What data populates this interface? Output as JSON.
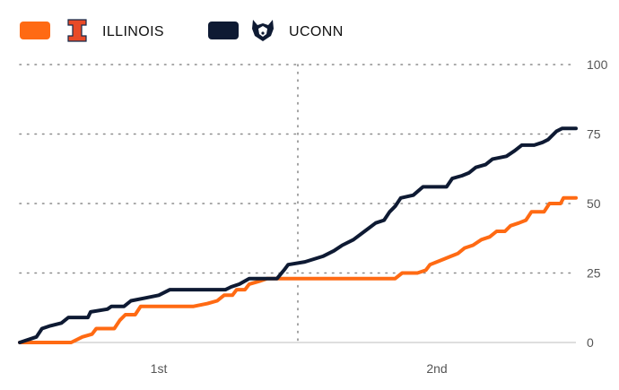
{
  "legend": [
    {
      "team": "ILLINOIS",
      "color": "#FF6A13",
      "logo": "illinois-block-i-logo"
    },
    {
      "team": "UCONN",
      "color": "#0E1A33",
      "logo": "uconn-husky-logo"
    }
  ],
  "chart_data": {
    "type": "line",
    "xlabel": "",
    "ylabel": "",
    "x_unit_note": "game minutes",
    "xlim": [
      0,
      40
    ],
    "ylim": [
      0,
      100
    ],
    "y_ticks": [
      0,
      25,
      50,
      75,
      100
    ],
    "periods": [
      "1st",
      "2nd"
    ],
    "grid": true,
    "legend_position": "top-left",
    "series": [
      {
        "name": "ILLINOIS",
        "color": "#FF6A13",
        "points": [
          [
            0,
            0
          ],
          [
            3.7,
            0
          ],
          [
            4.5,
            2
          ],
          [
            5.2,
            3
          ],
          [
            5.5,
            5
          ],
          [
            6.8,
            5
          ],
          [
            7.2,
            8
          ],
          [
            7.6,
            10
          ],
          [
            8.3,
            10
          ],
          [
            8.7,
            13
          ],
          [
            12.5,
            13
          ],
          [
            13.5,
            14
          ],
          [
            14.2,
            15
          ],
          [
            14.7,
            17
          ],
          [
            15.3,
            17
          ],
          [
            15.6,
            19
          ],
          [
            16.2,
            19
          ],
          [
            16.5,
            21
          ],
          [
            17.2,
            22
          ],
          [
            17.8,
            23
          ],
          [
            27.0,
            23
          ],
          [
            27.5,
            25
          ],
          [
            28.6,
            25
          ],
          [
            29.2,
            26
          ],
          [
            29.5,
            28
          ],
          [
            30.0,
            29
          ],
          [
            30.5,
            30
          ],
          [
            31.0,
            31
          ],
          [
            31.5,
            32
          ],
          [
            32.0,
            34
          ],
          [
            32.6,
            35
          ],
          [
            33.2,
            37
          ],
          [
            33.8,
            38
          ],
          [
            34.3,
            40
          ],
          [
            34.9,
            40
          ],
          [
            35.3,
            42
          ],
          [
            35.9,
            43
          ],
          [
            36.4,
            44
          ],
          [
            36.8,
            47
          ],
          [
            37.7,
            47
          ],
          [
            38.1,
            50
          ],
          [
            38.9,
            50
          ],
          [
            39.1,
            52
          ],
          [
            40.0,
            52
          ]
        ]
      },
      {
        "name": "UCONN",
        "color": "#0E1A33",
        "points": [
          [
            0,
            0
          ],
          [
            1.2,
            2
          ],
          [
            1.6,
            5
          ],
          [
            2.2,
            6
          ],
          [
            3.0,
            7
          ],
          [
            3.5,
            9
          ],
          [
            4.9,
            9
          ],
          [
            5.1,
            11
          ],
          [
            6.3,
            12
          ],
          [
            6.6,
            13
          ],
          [
            7.5,
            13
          ],
          [
            8.0,
            15
          ],
          [
            9.0,
            16
          ],
          [
            10.0,
            17
          ],
          [
            10.8,
            19
          ],
          [
            14.8,
            19
          ],
          [
            15.2,
            20
          ],
          [
            15.8,
            21
          ],
          [
            16.5,
            23
          ],
          [
            18.5,
            23
          ],
          [
            19.0,
            26
          ],
          [
            19.3,
            28
          ],
          [
            20.5,
            29
          ],
          [
            21.8,
            31
          ],
          [
            22.6,
            33
          ],
          [
            23.2,
            35
          ],
          [
            24.0,
            37
          ],
          [
            24.8,
            40
          ],
          [
            25.6,
            43
          ],
          [
            26.2,
            44
          ],
          [
            26.6,
            47
          ],
          [
            27.0,
            49
          ],
          [
            27.4,
            52
          ],
          [
            28.3,
            53
          ],
          [
            29.0,
            56
          ],
          [
            30.7,
            56
          ],
          [
            31.1,
            59
          ],
          [
            31.8,
            60
          ],
          [
            32.3,
            61
          ],
          [
            32.8,
            63
          ],
          [
            33.5,
            64
          ],
          [
            34.0,
            66
          ],
          [
            35.0,
            67
          ],
          [
            35.6,
            69
          ],
          [
            36.1,
            71
          ],
          [
            37.0,
            71
          ],
          [
            37.6,
            72
          ],
          [
            38.0,
            73
          ],
          [
            38.6,
            76
          ],
          [
            39.0,
            77
          ],
          [
            40.0,
            77
          ]
        ]
      }
    ]
  }
}
